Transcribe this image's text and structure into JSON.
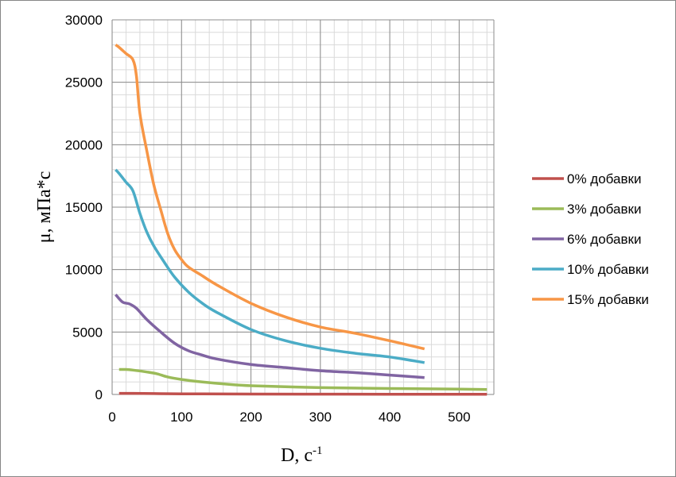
{
  "chart_data": {
    "type": "line",
    "title": "",
    "xlabel": "D, с",
    "xlabel_sup": "-1",
    "ylabel": "μ, мПа*с",
    "xlim": [
      0,
      550
    ],
    "ylim": [
      0,
      30000
    ],
    "x_ticks": [
      0,
      100,
      200,
      300,
      400,
      500
    ],
    "y_ticks": [
      0,
      5000,
      10000,
      15000,
      20000,
      25000,
      30000
    ],
    "x_minor_step": 20,
    "y_minor_step": 1000,
    "grid": true,
    "legend_position": "right",
    "series": [
      {
        "name": "0% добавки",
        "color": "#c0504d",
        "points": [
          [
            10,
            90
          ],
          [
            30,
            85
          ],
          [
            60,
            70
          ],
          [
            100,
            50
          ],
          [
            200,
            35
          ],
          [
            300,
            25
          ],
          [
            400,
            20
          ],
          [
            540,
            15
          ]
        ]
      },
      {
        "name": "3% добавки",
        "color": "#9bbb59",
        "points": [
          [
            10,
            2000
          ],
          [
            20,
            2000
          ],
          [
            30,
            1950
          ],
          [
            50,
            1800
          ],
          [
            65,
            1650
          ],
          [
            80,
            1400
          ],
          [
            100,
            1200
          ],
          [
            130,
            1000
          ],
          [
            170,
            800
          ],
          [
            200,
            700
          ],
          [
            300,
            550
          ],
          [
            400,
            480
          ],
          [
            500,
            430
          ],
          [
            540,
            400
          ]
        ]
      },
      {
        "name": "6% добавки",
        "color": "#8064a2",
        "points": [
          [
            5,
            8000
          ],
          [
            15,
            7400
          ],
          [
            25,
            7250
          ],
          [
            35,
            6900
          ],
          [
            50,
            6000
          ],
          [
            70,
            5000
          ],
          [
            90,
            4100
          ],
          [
            110,
            3500
          ],
          [
            130,
            3150
          ],
          [
            150,
            2850
          ],
          [
            200,
            2400
          ],
          [
            250,
            2150
          ],
          [
            300,
            1900
          ],
          [
            350,
            1750
          ],
          [
            400,
            1550
          ],
          [
            450,
            1350
          ]
        ]
      },
      {
        "name": "10% добавки",
        "color": "#4bacc6",
        "points": [
          [
            5,
            18000
          ],
          [
            10,
            17700
          ],
          [
            20,
            17000
          ],
          [
            30,
            16300
          ],
          [
            40,
            14500
          ],
          [
            50,
            13000
          ],
          [
            60,
            11900
          ],
          [
            75,
            10600
          ],
          [
            90,
            9400
          ],
          [
            110,
            8200
          ],
          [
            130,
            7300
          ],
          [
            150,
            6600
          ],
          [
            200,
            5200
          ],
          [
            250,
            4300
          ],
          [
            300,
            3700
          ],
          [
            350,
            3300
          ],
          [
            400,
            3000
          ],
          [
            450,
            2550
          ]
        ]
      },
      {
        "name": "15% добавки",
        "color": "#f79646",
        "points": [
          [
            5,
            28000
          ],
          [
            10,
            27800
          ],
          [
            20,
            27300
          ],
          [
            30,
            26800
          ],
          [
            35,
            25500
          ],
          [
            40,
            22500
          ],
          [
            50,
            19500
          ],
          [
            60,
            16800
          ],
          [
            70,
            14800
          ],
          [
            80,
            12900
          ],
          [
            90,
            11600
          ],
          [
            100,
            10800
          ],
          [
            110,
            10200
          ],
          [
            130,
            9500
          ],
          [
            150,
            8800
          ],
          [
            200,
            7300
          ],
          [
            250,
            6200
          ],
          [
            300,
            5400
          ],
          [
            350,
            4900
          ],
          [
            400,
            4300
          ],
          [
            450,
            3650
          ]
        ]
      }
    ]
  }
}
